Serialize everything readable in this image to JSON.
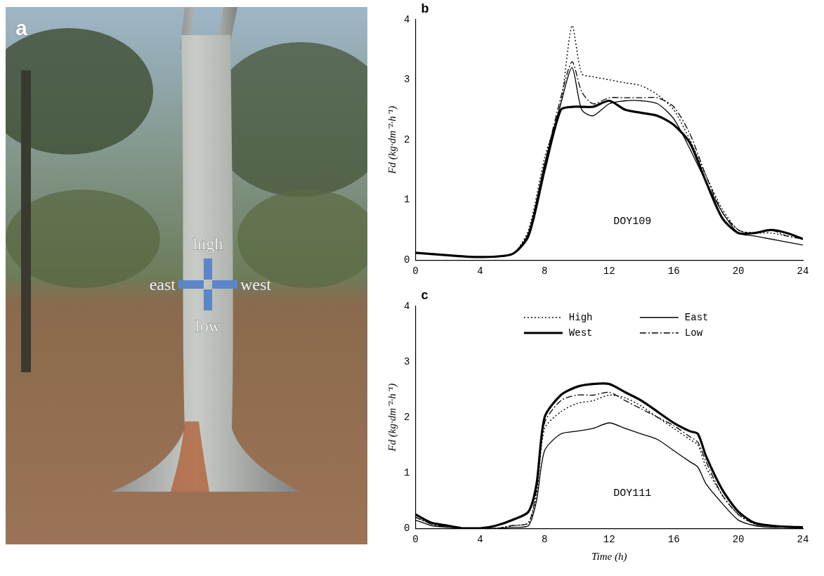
{
  "panel_a": {
    "letter": "a",
    "labels": {
      "high": "high",
      "east": "east",
      "west": "west",
      "low": "low"
    }
  },
  "chart_data": [
    {
      "type": "line",
      "panel": "b",
      "annotation": "DOY109",
      "y_label": "Fd (kg·dm⁻²·h⁻¹)",
      "x": [
        0,
        2,
        4,
        6,
        7,
        8,
        9,
        9.7,
        10.3,
        11,
        12,
        13,
        14,
        15,
        16,
        17,
        18,
        19,
        20,
        21,
        22,
        23,
        24
      ],
      "xlim": [
        0,
        24
      ],
      "xticks": [
        0,
        4,
        8,
        12,
        16,
        20,
        24
      ],
      "ylim": [
        0,
        4
      ],
      "yticks": [
        0,
        1,
        2,
        3,
        4
      ],
      "grid": false,
      "series": [
        {
          "name": "High",
          "color": "#000000",
          "line_style": "dotted",
          "values": [
            0.12,
            0.08,
            0.05,
            0.1,
            0.5,
            1.7,
            2.6,
            3.9,
            3.1,
            3.05,
            3.0,
            2.95,
            2.9,
            2.75,
            2.5,
            2.0,
            1.4,
            0.85,
            0.5,
            0.45,
            0.45,
            0.4,
            0.35
          ]
        },
        {
          "name": "East",
          "color": "#000000",
          "line_style": "solid",
          "values": [
            0.12,
            0.08,
            0.05,
            0.1,
            0.45,
            1.6,
            2.6,
            3.2,
            2.5,
            2.4,
            2.6,
            2.65,
            2.65,
            2.6,
            2.35,
            1.85,
            1.3,
            0.8,
            0.45,
            0.4,
            0.35,
            0.3,
            0.25
          ]
        },
        {
          "name": "West",
          "color": "#000000",
          "line_style": "thick",
          "values": [
            0.12,
            0.08,
            0.05,
            0.1,
            0.4,
            1.5,
            2.5,
            2.55,
            2.55,
            2.55,
            2.65,
            2.5,
            2.45,
            2.4,
            2.25,
            1.95,
            1.3,
            0.7,
            0.45,
            0.45,
            0.5,
            0.45,
            0.35
          ]
        },
        {
          "name": "Low",
          "color": "#000000",
          "line_style": "dashdot",
          "values": [
            0.12,
            0.08,
            0.05,
            0.1,
            0.45,
            1.6,
            2.7,
            3.3,
            2.8,
            2.6,
            2.7,
            2.7,
            2.7,
            2.7,
            2.55,
            2.1,
            1.4,
            0.8,
            0.5,
            0.45,
            0.5,
            0.4,
            0.35
          ]
        }
      ]
    },
    {
      "type": "line",
      "panel": "c",
      "annotation": "DOY111",
      "x_label": "Time (h)",
      "y_label": "Fd (kg·dm⁻²·h⁻¹)",
      "x": [
        0,
        1,
        2,
        3,
        4,
        5,
        6,
        7,
        7.5,
        8,
        9,
        10,
        11,
        12,
        13,
        14,
        15,
        16,
        17,
        17.5,
        18,
        19,
        20,
        21,
        22,
        23,
        24
      ],
      "xlim": [
        0,
        24
      ],
      "xticks": [
        0,
        4,
        8,
        12,
        16,
        20,
        24
      ],
      "ylim": [
        0,
        4
      ],
      "yticks": [
        0,
        1,
        2,
        3,
        4
      ],
      "grid": false,
      "legend": "upper center",
      "series": [
        {
          "name": "High",
          "color": "#000000",
          "line_style": "dotted",
          "values": [
            0.2,
            0.08,
            0.03,
            0,
            0,
            0,
            0.05,
            0.1,
            0.6,
            1.8,
            2.1,
            2.25,
            2.3,
            2.4,
            2.35,
            2.2,
            2.0,
            1.8,
            1.6,
            1.5,
            1.1,
            0.6,
            0.25,
            0.08,
            0.04,
            0.02,
            0.02
          ]
        },
        {
          "name": "East",
          "color": "#000000",
          "line_style": "solid",
          "values": [
            0.15,
            0.05,
            0.02,
            0,
            0,
            0,
            0.02,
            0.05,
            0.5,
            1.4,
            1.7,
            1.75,
            1.8,
            1.9,
            1.8,
            1.7,
            1.6,
            1.4,
            1.2,
            1.1,
            0.8,
            0.45,
            0.15,
            0.05,
            0.02,
            0.02,
            0.02
          ]
        },
        {
          "name": "West",
          "color": "#000000",
          "line_style": "thick",
          "values": [
            0.25,
            0.1,
            0.05,
            0,
            0,
            0.05,
            0.15,
            0.3,
            0.8,
            2.0,
            2.4,
            2.55,
            2.6,
            2.6,
            2.45,
            2.3,
            2.1,
            1.9,
            1.75,
            1.7,
            1.3,
            0.7,
            0.3,
            0.1,
            0.05,
            0.03,
            0.02
          ]
        },
        {
          "name": "Low",
          "color": "#000000",
          "line_style": "dashdot",
          "values": [
            0.2,
            0.08,
            0.03,
            0,
            0,
            0,
            0.05,
            0.1,
            0.7,
            1.9,
            2.3,
            2.4,
            2.4,
            2.45,
            2.3,
            2.15,
            2.0,
            1.85,
            1.65,
            1.55,
            1.2,
            0.6,
            0.25,
            0.08,
            0.04,
            0.02,
            0.02
          ]
        }
      ]
    }
  ]
}
